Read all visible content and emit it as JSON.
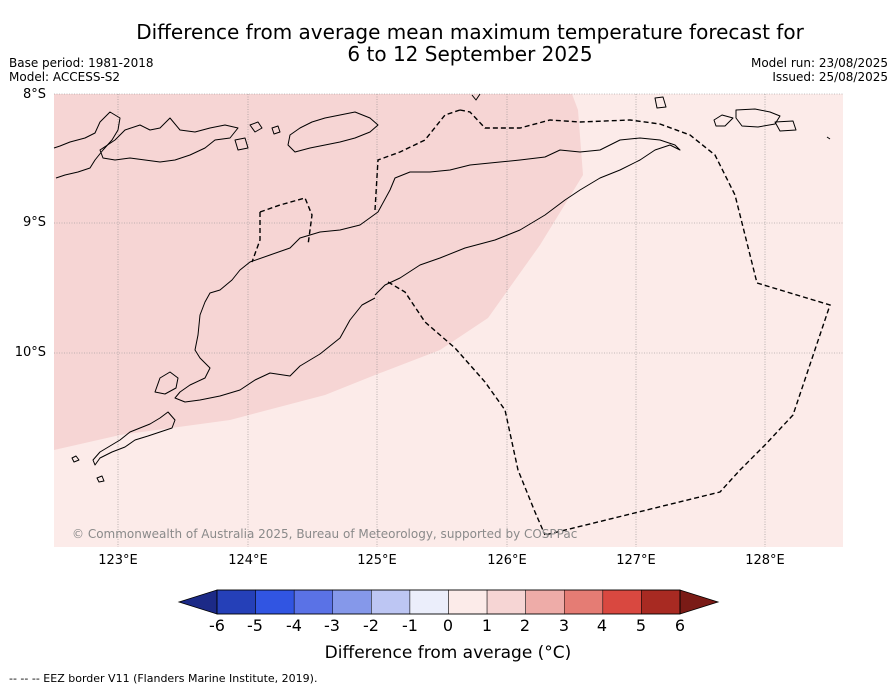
{
  "title": {
    "line1": "Difference from average mean maximum temperature forecast for",
    "line2": "6 to 12 September 2025"
  },
  "meta": {
    "base_period": "Base period: 1981-2018",
    "model": "Model: ACCESS-S2",
    "model_run": "Model run: 23/08/2025",
    "issued": "Issued: 25/08/2025"
  },
  "map": {
    "lat_labels": [
      "8°S",
      "9°S",
      "10°S"
    ],
    "lon_labels": [
      "123°E",
      "124°E",
      "125°E",
      "126°E",
      "127°E",
      "128°E"
    ],
    "copyright": "© Commonwealth of Australia 2025, Bureau of Meteorology, supported by COSPPac",
    "fill_colors": {
      "zero_to_one": "#fcebe9",
      "one_to_two": "#f6d5d4"
    }
  },
  "colorbar": {
    "ticks": [
      "-6",
      "-5",
      "-4",
      "-3",
      "-2",
      "-1",
      "0",
      "1",
      "2",
      "3",
      "4",
      "5",
      "6"
    ],
    "colors": [
      "#1c2a87",
      "#2540b8",
      "#3155e2",
      "#5a72e6",
      "#8598ea",
      "#bdc6f3",
      "#ebeefb",
      "#fcebe9",
      "#f6d5d4",
      "#eeaca8",
      "#e57c74",
      "#d94840",
      "#a82a22",
      "#7a1b16"
    ],
    "label": "Difference from average (°C)"
  },
  "footer": {
    "legend": "--  --  -- EEZ border V11 (Flanders Marine Institute, 2019)."
  }
}
